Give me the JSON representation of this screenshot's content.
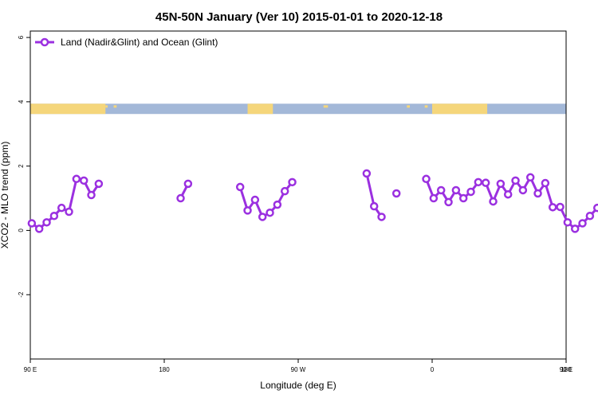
{
  "chart_data": {
    "type": "line",
    "title": "45N-50N January (Ver 10)   2015-01-01 to 2020-12-18",
    "xlabel": "Longitude (deg E)",
    "ylabel": "XCO2 - MLO trend (ppm)",
    "xlim": [
      90,
      450
    ],
    "ylim": [
      -4,
      6.2
    ],
    "x_ticks": [
      {
        "value": 90,
        "label": "90 E"
      },
      {
        "value": 180,
        "label": "180"
      },
      {
        "value": 270,
        "label": "90 W"
      },
      {
        "value": 360,
        "label": "0"
      },
      {
        "value": 450,
        "label": "90 E"
      },
      {
        "value": 540,
        "label": "180"
      }
    ],
    "y_ticks": [
      {
        "value": -2,
        "label": "-2"
      },
      {
        "value": 0,
        "label": "0"
      },
      {
        "value": 2,
        "label": "2"
      },
      {
        "value": 4,
        "label": "4"
      },
      {
        "value": 6,
        "label": "6"
      }
    ],
    "legend": {
      "position": "top-left",
      "entries": [
        "Land (Nadir&Glint) and Ocean (Glint)"
      ]
    },
    "colors": {
      "series": "#9b30e0",
      "land": "#f5d67b",
      "ocean": "#a3b8d8"
    },
    "landmask": {
      "y_range": [
        3.62,
        3.94
      ],
      "land_segments": [
        [
          90,
          140.5
        ],
        [
          236,
          253
        ],
        [
          360,
          397
        ],
        [
          468,
          495.5
        ]
      ],
      "islands": [
        [
          140.5,
          142
        ],
        [
          146,
          148
        ],
        [
          287,
          290
        ],
        [
          343,
          345
        ],
        [
          355,
          357
        ]
      ]
    },
    "series": [
      {
        "name": "Land (Nadir&Glint) and Ocean (Glint)",
        "segments": [
          [
            [
              91,
              0.22
            ],
            [
              96,
              0.05
            ],
            [
              101,
              0.25
            ],
            [
              106,
              0.45
            ],
            [
              111,
              0.7
            ],
            [
              116,
              0.58
            ],
            [
              121,
              1.6
            ],
            [
              126,
              1.55
            ],
            [
              131,
              1.1
            ],
            [
              136,
              1.45
            ]
          ],
          [
            [
              191,
              1.0
            ],
            [
              196,
              1.45
            ]
          ],
          [
            [
              231,
              1.35
            ],
            [
              236,
              0.62
            ],
            [
              241,
              0.95
            ],
            [
              246,
              0.42
            ],
            [
              251,
              0.55
            ],
            [
              256,
              0.8
            ],
            [
              261,
              1.22
            ],
            [
              266,
              1.5
            ]
          ],
          [
            [
              316,
              1.77
            ],
            [
              321,
              0.75
            ],
            [
              326,
              0.42
            ]
          ],
          [
            [
              336,
              1.15
            ]
          ],
          [
            [
              356,
              1.6
            ],
            [
              361,
              1.0
            ],
            [
              366,
              1.25
            ],
            [
              371,
              0.88
            ],
            [
              376,
              1.25
            ],
            [
              381,
              1.0
            ],
            [
              386,
              1.2
            ],
            [
              391,
              1.5
            ],
            [
              396,
              1.48
            ],
            [
              401,
              0.9
            ],
            [
              406,
              1.45
            ],
            [
              411,
              1.12
            ],
            [
              416,
              1.55
            ],
            [
              421,
              1.25
            ],
            [
              426,
              1.65
            ],
            [
              431,
              1.15
            ],
            [
              436,
              1.47
            ],
            [
              441,
              0.72
            ],
            [
              446,
              0.73
            ],
            [
              451,
              0.25
            ],
            [
              456,
              0.05
            ],
            [
              461,
              0.22
            ],
            [
              466,
              0.45
            ],
            [
              471,
              0.7
            ],
            [
              476,
              0.6
            ],
            [
              481,
              1.6
            ],
            [
              486,
              1.55
            ],
            [
              491,
              1.1
            ],
            [
              496,
              1.45
            ]
          ]
        ]
      }
    ]
  }
}
